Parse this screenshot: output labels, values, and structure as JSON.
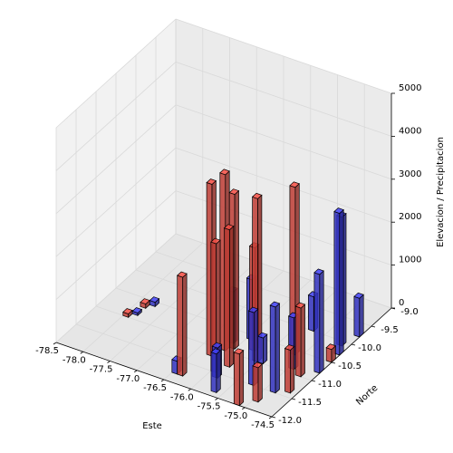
{
  "chart_data": {
    "type": "bar3d",
    "xlabel": "Este",
    "ylabel": "Norte",
    "zlabel": "Elevacion / Precipitacion",
    "xlim": [
      -78.5,
      -74.5
    ],
    "xticks": [
      -78.5,
      {
        "value": -78,
        "label": "-78.0"
      },
      -77.5,
      {
        "value": -77,
        "label": "-77.0"
      },
      -76.5,
      {
        "value": -76,
        "label": "-76.0"
      },
      -75.5,
      {
        "value": -75,
        "label": "-75.0"
      },
      -74.5
    ],
    "ylim": [
      -12,
      -9
    ],
    "yticks": [
      {
        "value": -12,
        "label": "-12.0"
      },
      -11.5,
      {
        "value": -11,
        "label": "-11.0"
      },
      -10.5,
      {
        "value": -10,
        "label": "-10.0"
      },
      -9.5,
      {
        "value": -9,
        "label": "-9.0"
      }
    ],
    "zlim": [
      0,
      5000
    ],
    "zticks": [
      0,
      1000,
      2000,
      3000,
      4000,
      5000
    ],
    "bar_size": 0.1,
    "series": [
      {
        "color": "#e0483e",
        "x": [
          -76.4,
          -76.3,
          -76.2,
          -76.1,
          -76.0,
          -75.9,
          -75.8,
          -75.6,
          -75.2,
          -75.0,
          -74.8,
          -74.7,
          -77.9,
          -78.0,
          -74.6,
          -75.2
        ],
        "y": [
          -11.8,
          -11.2,
          -11.0,
          -10.9,
          -11.5,
          -11.3,
          -10.8,
          -11.0,
          -10.6,
          -11.8,
          -11.0,
          -11.4,
          -10.7,
          -11.0,
          -10.5,
          -12.0
        ],
        "z": [
          2300,
          4000,
          4100,
          3600,
          3000,
          3200,
          2400,
          3800,
          3900,
          800,
          1600,
          1000,
          100,
          80,
          300,
          1200
        ]
      },
      {
        "color": "#3b3be0",
        "x": [
          -77.8,
          -77.9,
          -76.5,
          -76.2,
          -76.0,
          -75.9,
          -75.7,
          -75.5,
          -75.3,
          -75.0,
          -74.9,
          -74.7,
          -74.6,
          -74.6,
          -74.6,
          -75.3
        ],
        "y": [
          -10.6,
          -10.9,
          -11.8,
          -10.8,
          -10.6,
          -11.6,
          -11.9,
          -11.0,
          -11.5,
          -10.9,
          -11.5,
          -10.1,
          -10.8,
          -9.8,
          -10.3,
          -10.0
        ],
        "z": [
          100,
          60,
          300,
          1200,
          1400,
          700,
          900,
          600,
          1700,
          1200,
          2000,
          3000,
          2300,
          900,
          3300,
          800
        ]
      }
    ]
  }
}
